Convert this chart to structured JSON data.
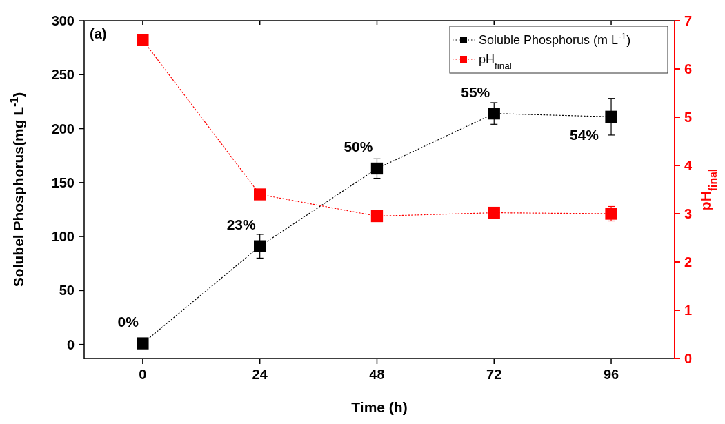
{
  "chart_data": {
    "type": "line",
    "xlabel": "Time (h)",
    "ylabel": "Solubel Phosphorus(mg L$^{-1}$)",
    "y2label": "pH$_{final}$",
    "x": [
      0,
      24,
      48,
      72,
      96
    ],
    "series": [
      {
        "name": "Soluble Phosphorus (m L$^{-1}$)",
        "color": "#000000",
        "values": [
          1,
          91,
          163,
          214,
          211
        ],
        "errors": [
          null,
          11,
          9,
          10,
          17
        ]
      },
      {
        "name": "pH$_{final}$",
        "color": "#ff0000",
        "values": [
          6.6,
          3.4,
          2.95,
          3.02,
          3.0
        ],
        "errors": [
          null,
          null,
          null,
          null,
          0.15
        ],
        "axis": "y2"
      }
    ],
    "xlim": [
      -12,
      109
    ],
    "xticks": [
      0,
      24,
      48,
      72,
      96
    ],
    "ylim": [
      -13,
      300
    ],
    "yticks": [
      0,
      50,
      100,
      150,
      200,
      250,
      300
    ],
    "y2lim": [
      0,
      7
    ],
    "y2ticks": [
      0,
      1,
      2,
      3,
      4,
      5,
      6,
      7
    ],
    "annotations": [
      "(a)",
      {
        "text": "0%",
        "x": 0,
        "y": 1
      },
      {
        "text": "23%",
        "x": 24,
        "y": 91
      },
      {
        "text": "50%",
        "x": 48,
        "y": 163
      },
      {
        "text": "55%",
        "x": 72,
        "y": 214
      },
      {
        "text": "54%",
        "x": 96,
        "y": 211
      }
    ],
    "marker": "square",
    "line_style": "dotted",
    "legend": "top right",
    "grid": false
  }
}
